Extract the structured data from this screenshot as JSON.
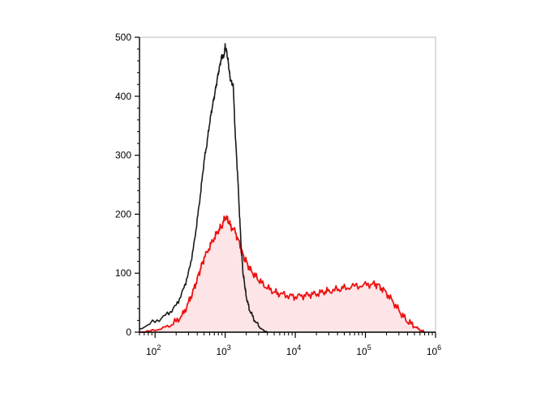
{
  "chart_data": {
    "type": "area",
    "xscale": "log",
    "xlim": [
      60,
      1000000
    ],
    "ylim": [
      0,
      500
    ],
    "grid": false,
    "title": "",
    "xlabel": "",
    "ylabel": "",
    "x_ticks": [
      {
        "base": "10",
        "exp": "2",
        "value": 100
      },
      {
        "base": "10",
        "exp": "3",
        "value": 1000
      },
      {
        "base": "10",
        "exp": "4",
        "value": 10000
      },
      {
        "base": "10",
        "exp": "5",
        "value": 100000
      },
      {
        "base": "10",
        "exp": "6",
        "value": 1000000
      }
    ],
    "y_ticks": [
      "0",
      "100",
      "200",
      "300",
      "400",
      "500"
    ],
    "series": [
      {
        "color": "#1a1a1a",
        "fill": false,
        "points": [
          [
            60,
            5
          ],
          [
            100,
            18
          ],
          [
            150,
            30
          ],
          [
            200,
            45
          ],
          [
            250,
            70
          ],
          [
            300,
            100
          ],
          [
            350,
            140
          ],
          [
            400,
            190
          ],
          [
            450,
            240
          ],
          [
            500,
            290
          ],
          [
            550,
            320
          ],
          [
            600,
            355
          ],
          [
            650,
            380
          ],
          [
            700,
            400
          ],
          [
            750,
            420
          ],
          [
            800,
            440
          ],
          [
            850,
            455
          ],
          [
            900,
            470
          ],
          [
            950,
            465
          ],
          [
            1000,
            485
          ],
          [
            1050,
            475
          ],
          [
            1100,
            460
          ],
          [
            1150,
            440
          ],
          [
            1200,
            425
          ],
          [
            1300,
            420
          ],
          [
            1400,
            330
          ],
          [
            1500,
            270
          ],
          [
            1600,
            200
          ],
          [
            1700,
            140
          ],
          [
            1800,
            100
          ],
          [
            1900,
            80
          ],
          [
            2000,
            60
          ],
          [
            2200,
            40
          ],
          [
            2500,
            25
          ],
          [
            3000,
            10
          ],
          [
            3500,
            3
          ],
          [
            4000,
            0
          ]
        ]
      },
      {
        "color": "#ee1111",
        "fill": true,
        "fill_color": "#fde4e6",
        "points": [
          [
            60,
            0
          ],
          [
            100,
            3
          ],
          [
            150,
            10
          ],
          [
            200,
            18
          ],
          [
            250,
            30
          ],
          [
            300,
            50
          ],
          [
            350,
            70
          ],
          [
            400,
            90
          ],
          [
            450,
            110
          ],
          [
            500,
            125
          ],
          [
            600,
            145
          ],
          [
            700,
            160
          ],
          [
            800,
            172
          ],
          [
            900,
            180
          ],
          [
            1000,
            195
          ],
          [
            1100,
            190
          ],
          [
            1200,
            180
          ],
          [
            1400,
            170
          ],
          [
            1600,
            150
          ],
          [
            1800,
            130
          ],
          [
            2000,
            120
          ],
          [
            2300,
            105
          ],
          [
            2700,
            95
          ],
          [
            3200,
            85
          ],
          [
            4000,
            75
          ],
          [
            5000,
            68
          ],
          [
            6000,
            65
          ],
          [
            8000,
            62
          ],
          [
            10000,
            60
          ],
          [
            13000,
            62
          ],
          [
            16000,
            64
          ],
          [
            20000,
            65
          ],
          [
            25000,
            68
          ],
          [
            30000,
            70
          ],
          [
            40000,
            72
          ],
          [
            50000,
            75
          ],
          [
            70000,
            78
          ],
          [
            100000,
            80
          ],
          [
            130000,
            82
          ],
          [
            150000,
            80
          ],
          [
            180000,
            72
          ],
          [
            220000,
            60
          ],
          [
            270000,
            45
          ],
          [
            330000,
            30
          ],
          [
            400000,
            18
          ],
          [
            500000,
            10
          ],
          [
            600000,
            4
          ],
          [
            700000,
            0
          ]
        ]
      }
    ]
  }
}
